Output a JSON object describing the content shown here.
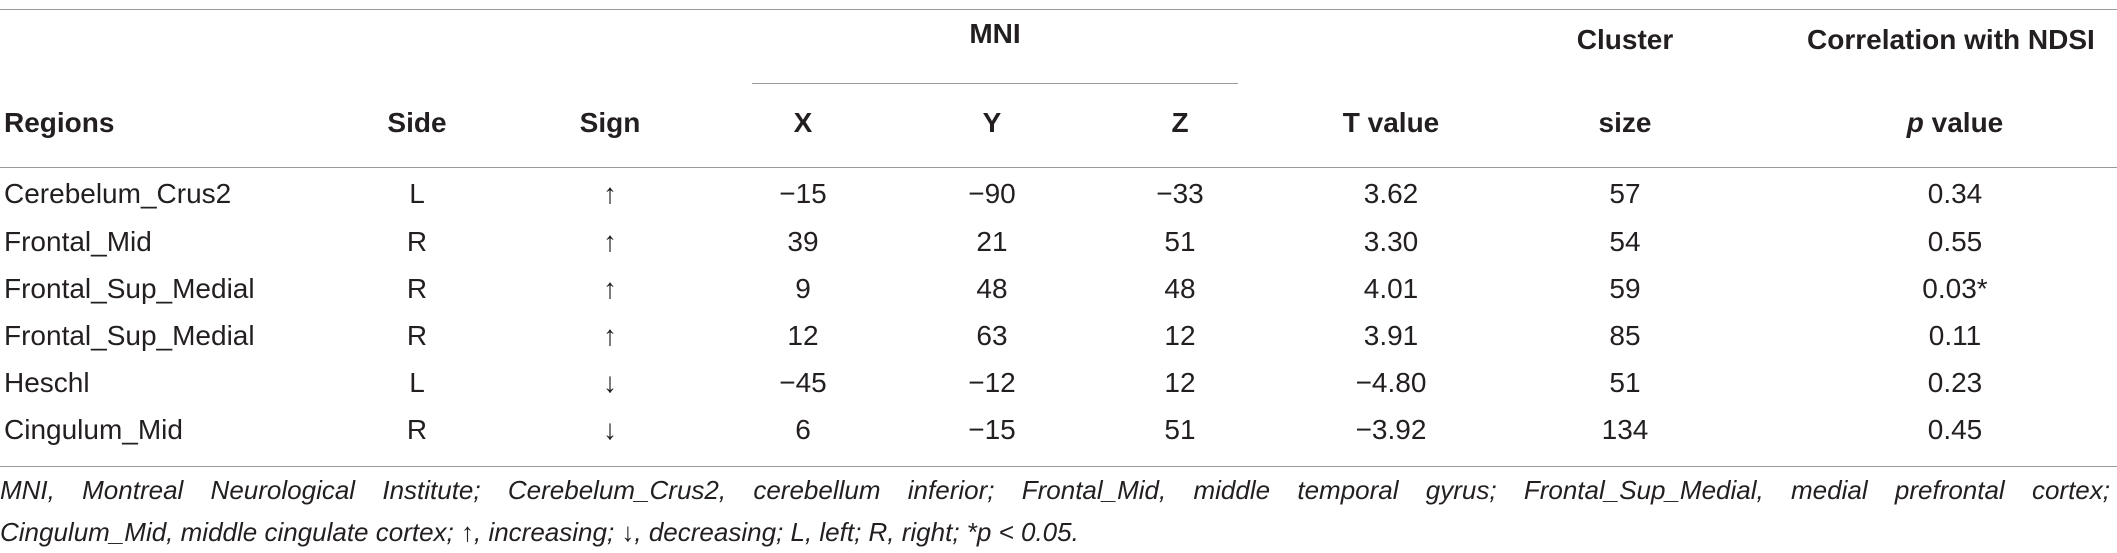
{
  "table": {
    "header_groups": {
      "mni": "MNI",
      "cluster": "Cluster",
      "correlation": "Correlation with NDSI"
    },
    "headers": {
      "regions": "Regions",
      "side": "Side",
      "sign": "Sign",
      "x": "X",
      "y": "Y",
      "z": "Z",
      "t_value": "T value",
      "size": "size",
      "p_italic": "p",
      "p_rest": " value"
    },
    "rows": [
      {
        "region": "Cerebelum_Crus2",
        "side": "L",
        "sign": "↑",
        "x": "−15",
        "y": "−90",
        "z": "−33",
        "t": "3.62",
        "size": "57",
        "p": "0.34"
      },
      {
        "region": "Frontal_Mid",
        "side": "R",
        "sign": "↑",
        "x": "39",
        "y": "21",
        "z": "51",
        "t": "3.30",
        "size": "54",
        "p": "0.55"
      },
      {
        "region": "Frontal_Sup_Medial",
        "side": "R",
        "sign": "↑",
        "x": "9",
        "y": "48",
        "z": "48",
        "t": "4.01",
        "size": "59",
        "p": "0.03*"
      },
      {
        "region": "Frontal_Sup_Medial",
        "side": "R",
        "sign": "↑",
        "x": "12",
        "y": "63",
        "z": "12",
        "t": "3.91",
        "size": "85",
        "p": "0.11"
      },
      {
        "region": "Heschl",
        "side": "L",
        "sign": "↓",
        "x": "−45",
        "y": "−12",
        "z": "12",
        "t": "−4.80",
        "size": "51",
        "p": "0.23"
      },
      {
        "region": "Cingulum_Mid",
        "side": "R",
        "sign": "↓",
        "x": "6",
        "y": "−15",
        "z": "51",
        "t": "−3.92",
        "size": "134",
        "p": "0.45"
      }
    ],
    "footnote": {
      "line1": "MNI, Montreal Neurological Institute; Cerebelum_Crus2, cerebellum inferior; Frontal_Mid, middle temporal gyrus; Frontal_Sup_Medial, medial prefrontal cortex;",
      "line2": "Cingulum_Mid, middle cingulate cortex; ↑, increasing; ↓, decreasing; L, left; R, right; *p < 0.05."
    }
  }
}
